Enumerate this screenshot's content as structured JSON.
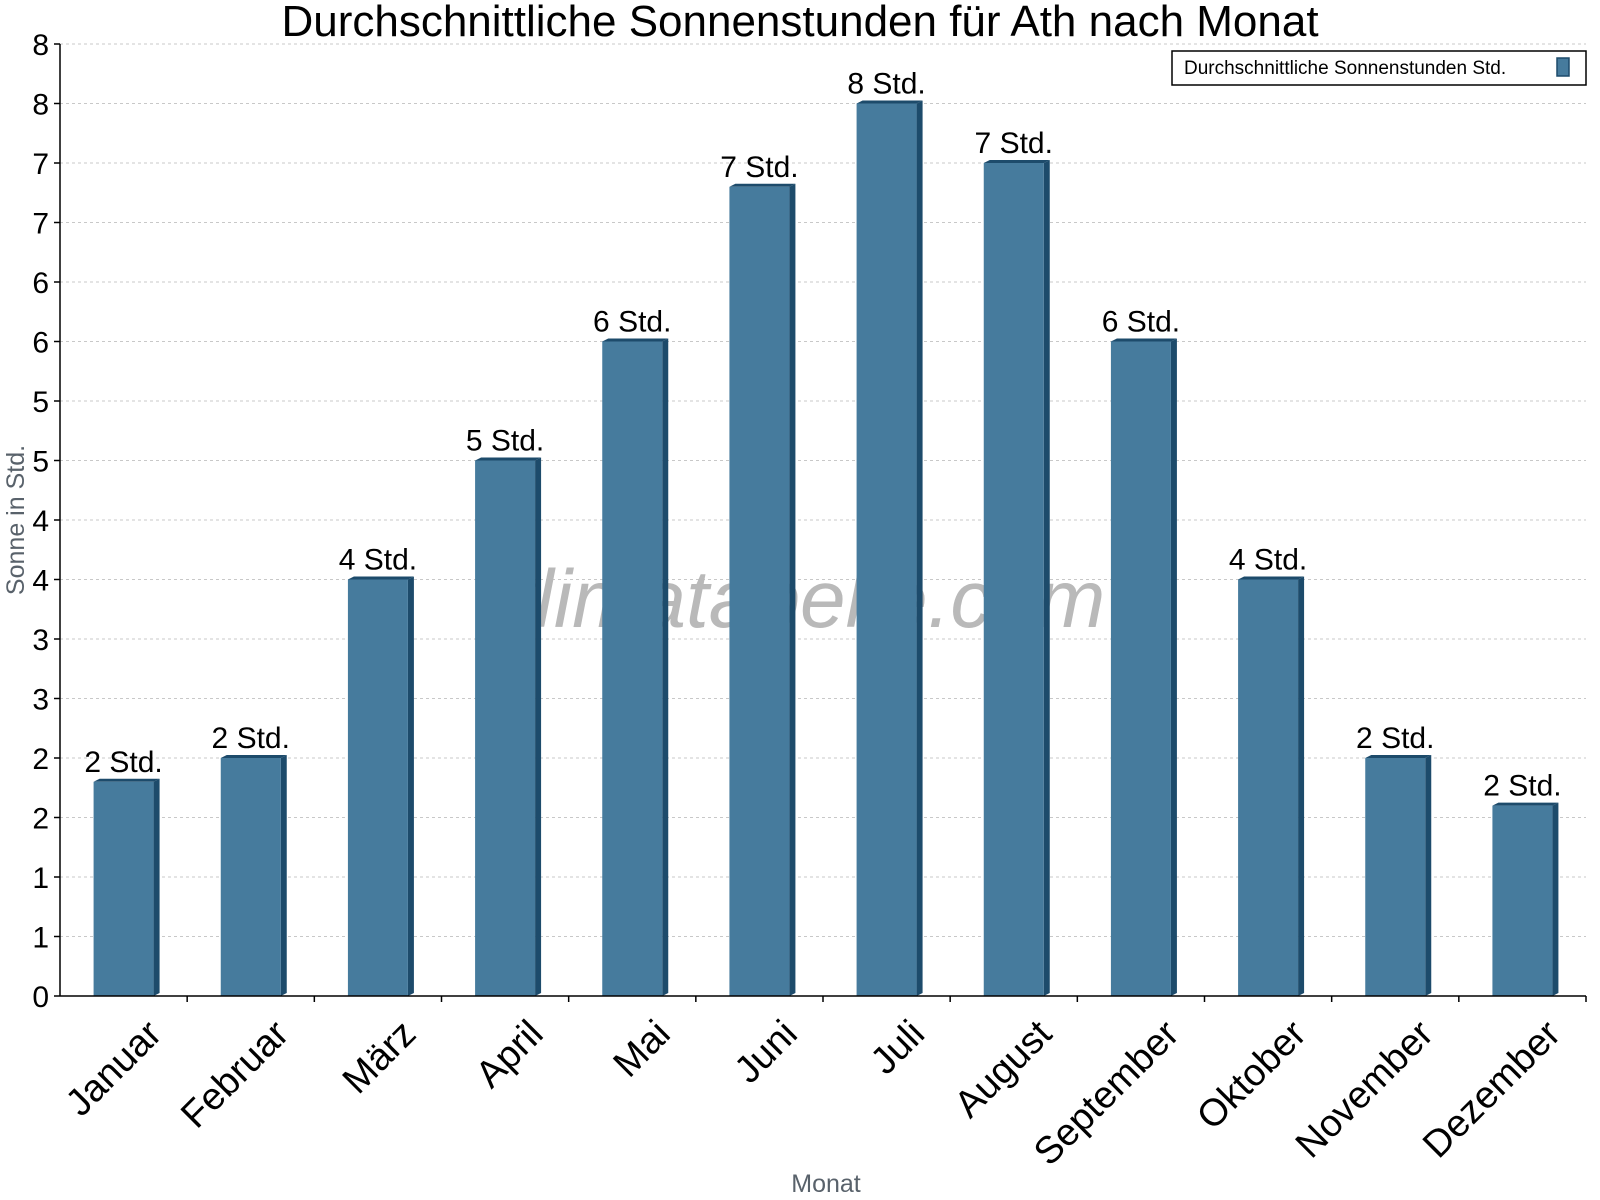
{
  "chart_data": {
    "type": "bar",
    "title": "Durchschnittliche Sonnenstunden für Ath nach Monat",
    "xlabel": "Monat",
    "ylabel": "Sonne in Std.",
    "categories": [
      "Januar",
      "Februar",
      "März",
      "April",
      "Mai",
      "Juni",
      "Juli",
      "August",
      "September",
      "Oktober",
      "November",
      "Dezember"
    ],
    "series": [
      {
        "name": "Durchschnittliche Sonnenstunden Std.",
        "values": [
          1.8,
          2.0,
          3.5,
          4.5,
          5.5,
          6.8,
          7.5,
          7.0,
          5.5,
          3.5,
          2.0,
          1.6
        ],
        "labels": [
          "2 Std.",
          "2 Std.",
          "4 Std.",
          "5 Std.",
          "6 Std.",
          "7 Std.",
          "8 Std.",
          "7 Std.",
          "6 Std.",
          "4 Std.",
          "2 Std.",
          "2 Std."
        ]
      }
    ],
    "yticks": [
      {
        "value": 0,
        "label": "0"
      },
      {
        "value": 0.5,
        "label": "1"
      },
      {
        "value": 1.0,
        "label": "1"
      },
      {
        "value": 1.5,
        "label": "2"
      },
      {
        "value": 2.0,
        "label": "2"
      },
      {
        "value": 2.5,
        "label": "3"
      },
      {
        "value": 3.0,
        "label": "3"
      },
      {
        "value": 3.5,
        "label": "4"
      },
      {
        "value": 4.0,
        "label": "4"
      },
      {
        "value": 4.5,
        "label": "5"
      },
      {
        "value": 5.0,
        "label": "5"
      },
      {
        "value": 5.5,
        "label": "6"
      },
      {
        "value": 6.0,
        "label": "6"
      },
      {
        "value": 6.5,
        "label": "7"
      },
      {
        "value": 7.0,
        "label": "7"
      },
      {
        "value": 7.5,
        "label": "8"
      },
      {
        "value": 8.0,
        "label": "8"
      }
    ],
    "ylim": [
      0,
      8
    ],
    "grid": true,
    "legend_position": "top-right",
    "bar_color": "#467b9d",
    "bar_side_color": "#1d4b6b",
    "watermark": "klimatabelle.com"
  }
}
